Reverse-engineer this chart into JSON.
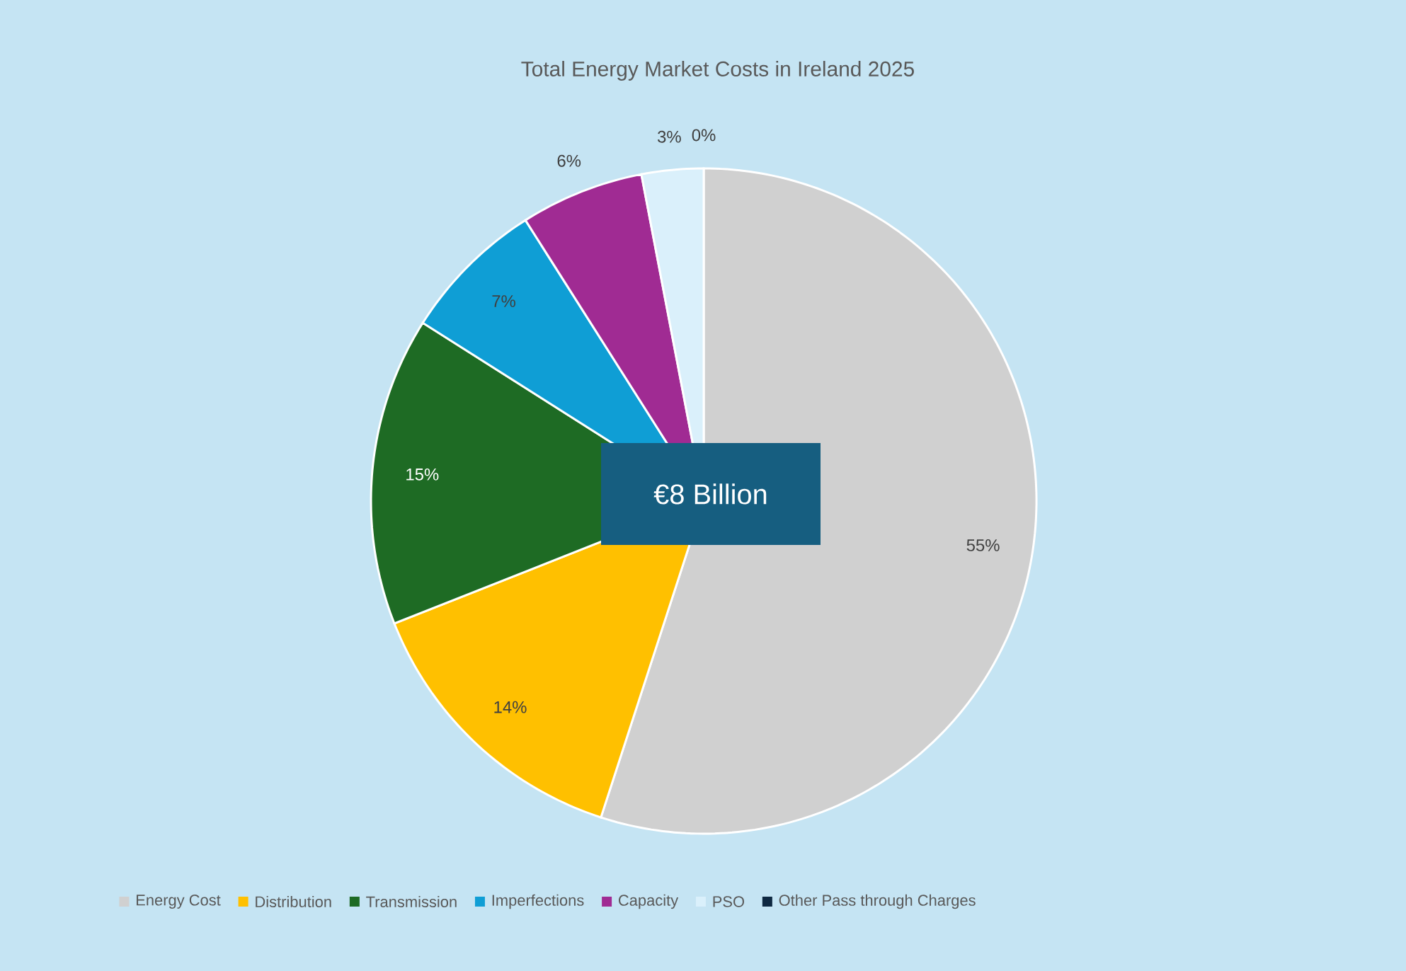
{
  "chart_data": {
    "type": "pie",
    "title": "Total Energy Market Costs in Ireland 2025",
    "categories": [
      "Energy Cost",
      "Distribution",
      "Transmission",
      "Imperfections",
      "Capacity",
      "PSO",
      "Other Pass through Charges"
    ],
    "values": [
      55,
      14,
      15,
      7,
      6,
      3,
      0
    ],
    "colors": [
      "#d0d0d0",
      "#ffc000",
      "#1e6b24",
      "#0f9ed5",
      "#a02b93",
      "#daf0fb",
      "#0e2841"
    ],
    "value_labels": [
      "55%",
      "14%",
      "15%",
      "7%",
      "6%",
      "3%",
      "0%"
    ],
    "annotations": [
      "€8 Billion"
    ],
    "legend": "bottom"
  }
}
